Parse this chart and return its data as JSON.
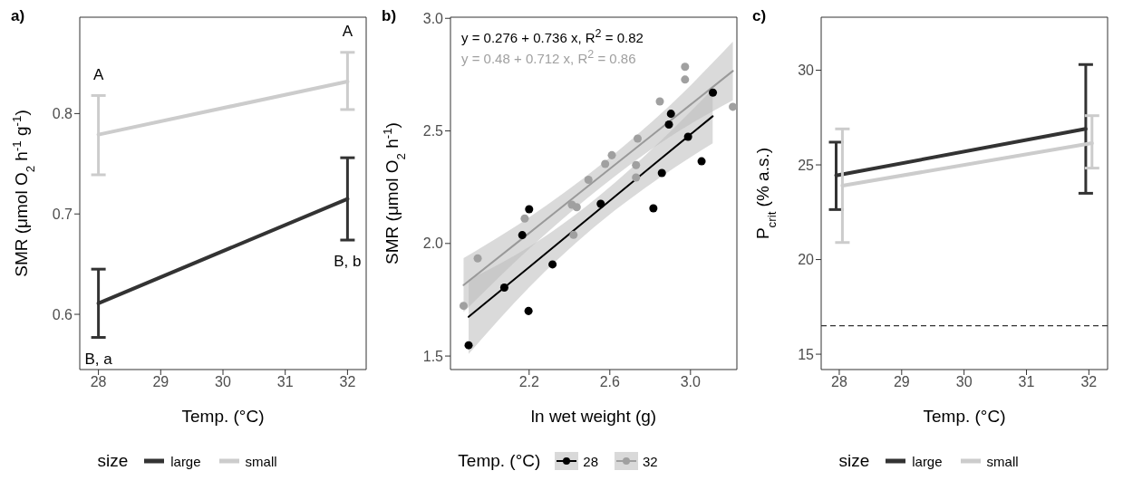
{
  "chart_data": [
    {
      "type": "line",
      "title": "a)",
      "xlabel": "Temp. (°C)",
      "ylabel": "SMR (μmol O$_{2}$ h$^{-1}$ g$^{-1}$)",
      "legend_title": "size",
      "legend": "bottom",
      "grid": false,
      "x": [
        28,
        32
      ],
      "xlim": [
        27.7,
        32.3
      ],
      "xticks": [
        28,
        29,
        30,
        31,
        32
      ],
      "ylim": [
        0.545,
        0.896
      ],
      "yticks": [
        0.6,
        0.7,
        0.8
      ],
      "series": [
        {
          "name": "large",
          "color": "#333333",
          "values": [
            0.611,
            0.715
          ],
          "errors": [
            [
              0.577,
              0.645
            ],
            [
              0.674,
              0.756
            ]
          ]
        },
        {
          "name": "small",
          "color": "#cccccc",
          "values": [
            0.779,
            0.832
          ],
          "errors": [
            [
              0.739,
              0.818
            ],
            [
              0.804,
              0.861
            ]
          ]
        }
      ],
      "annotations": [
        "A",
        "A",
        "B, a",
        "B, b"
      ]
    },
    {
      "type": "scatter",
      "title": "b)",
      "xlabel": "ln wet weight (g)",
      "ylabel": "SMR (μmol O$_{2}$ h$^{-1}$)",
      "legend_title": "Temp. (°C)",
      "legend": "bottom",
      "grid": false,
      "xlim": [
        1.81,
        3.23
      ],
      "xticks": [
        2.2,
        2.6,
        {
          "value": 3,
          "label": "3.0"
        }
      ],
      "ylim": [
        1.44,
        3.005
      ],
      "yticks": [
        1.5,
        {
          "value": 2,
          "label": "2.0"
        },
        2.5,
        {
          "value": 3,
          "label": "3.0"
        }
      ],
      "series": [
        {
          "name": "28",
          "color": "#000000",
          "marker": "circle",
          "x": [
            1.9,
            2.077,
            2.197,
            2.2,
            2.166,
            2.316,
            2.555,
            2.816,
            2.858,
            2.893,
            2.903,
            2.988,
            3.055,
            3.111
          ],
          "values": [
            1.548,
            1.804,
            1.7,
            2.152,
            2.037,
            1.907,
            2.176,
            2.156,
            2.313,
            2.528,
            2.576,
            2.474,
            2.365,
            2.67
          ]
        },
        {
          "name": "32",
          "color": "#a0a0a0",
          "marker": "circle",
          "x": [
            1.875,
            1.945,
            2.178,
            2.42,
            2.412,
            2.436,
            2.494,
            2.577,
            2.61,
            2.73,
            2.73,
            2.738,
            2.848,
            2.973,
            2.973,
            3.21
          ],
          "values": [
            1.723,
            1.934,
            2.111,
            2.038,
            2.172,
            2.161,
            2.283,
            2.353,
            2.392,
            2.348,
            2.293,
            2.466,
            2.631,
            2.728,
            2.785,
            2.607
          ]
        },
        {
          "type": "line",
          "color": "#000000",
          "x": [
            1.9,
            2.2,
            2.55,
            2.85,
            3.11
          ],
          "values": [
            1.674,
            1.895,
            2.153,
            2.374,
            2.565
          ],
          "lower": [
            1.509,
            1.805,
            2.093,
            2.294,
            2.445
          ],
          "upper": [
            1.839,
            1.985,
            2.213,
            2.454,
            2.685
          ]
        },
        {
          "type": "line",
          "color": "#999999",
          "x": [
            1.875,
            2.2,
            2.55,
            2.9,
            3.21
          ],
          "values": [
            1.815,
            2.046,
            2.296,
            2.545,
            2.766
          ],
          "lower": [
            1.695,
            1.976,
            2.246,
            2.475,
            2.636
          ],
          "upper": [
            1.935,
            2.116,
            2.346,
            2.615,
            2.896
          ]
        }
      ],
      "annotations": [
        "y = 0.276 + 0.736 x,  R$^{2}$ = 0.82",
        "y = 0.48 + 0.712 x,  R$^{2}$ = 0.86"
      ]
    },
    {
      "type": "line",
      "title": "c)",
      "xlabel": "Temp.  (°C)",
      "ylabel": "P$_{crit}$ (% a.s.)",
      "legend_title": "size",
      "legend": "bottom",
      "grid": false,
      "xlim": [
        27.71,
        32.3
      ],
      "xticks": [
        28,
        29,
        30,
        31,
        32
      ],
      "ylim": [
        14.19,
        32.8
      ],
      "yticks": [
        15,
        20,
        25,
        30
      ],
      "series": [
        {
          "name": "large",
          "color": "#333333",
          "x": [
            27.95,
            31.95
          ],
          "values": [
            24.44,
            26.9
          ],
          "errors": [
            [
              22.64,
              26.2
            ],
            [
              23.5,
              30.3
            ]
          ]
        },
        {
          "name": "small",
          "color": "#cccccc",
          "x": [
            28.05,
            32.05
          ],
          "values": [
            23.9,
            26.15
          ],
          "errors": [
            [
              20.9,
              26.9
            ],
            [
              24.83,
              27.6
            ]
          ]
        }
      ],
      "ref_lines": [
        {
          "axis": "y",
          "value": 16.5,
          "color": "#000000",
          "line_style": "dashed"
        }
      ]
    }
  ]
}
